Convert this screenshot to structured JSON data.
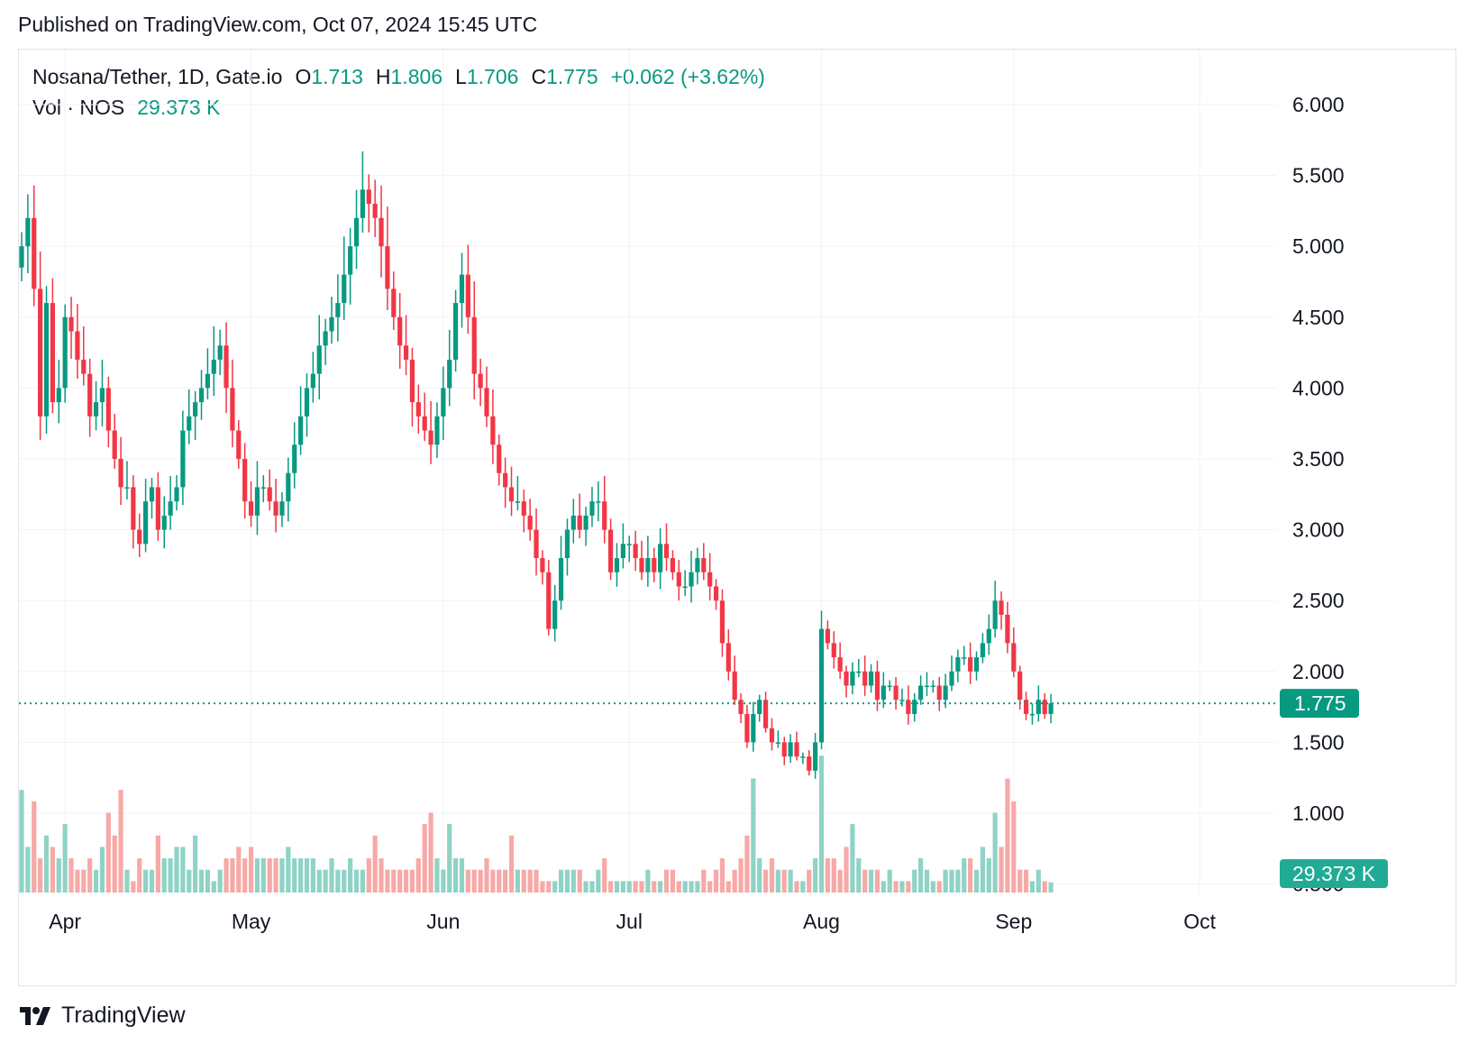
{
  "header": {
    "published": "Published on TradingView.com, Oct 07, 2024 15:45 UTC"
  },
  "legend": {
    "symbol": "Nosana/Tether, 1D, Gate.io",
    "o_label": "O",
    "o_value": "1.713",
    "h_label": "H",
    "h_value": "1.806",
    "l_label": "L",
    "l_value": "1.706",
    "c_label": "C",
    "c_value": "1.775",
    "change": "+0.062 (+3.62%)",
    "vol_label": "Vol · NOS",
    "vol_value": "29.373 K"
  },
  "price_badge": "1.775",
  "volume_badge": "29.373 K",
  "footer": {
    "brand": "TradingView"
  },
  "colors": {
    "up": "#089981",
    "down": "#f23645",
    "up_vol": "#8fd3c6",
    "down_vol": "#f7a9a7",
    "grid": "#f0f3fa",
    "text": "#131722"
  },
  "chart_data": {
    "type": "candlestick",
    "title": "Nosana/Tether, 1D, Gate.io",
    "xlabel": "",
    "ylabel": "",
    "ylim": [
      0.5,
      6.2
    ],
    "y_ticks": [
      "6.000",
      "5.500",
      "5.000",
      "4.500",
      "4.000",
      "3.500",
      "3.000",
      "2.500",
      "2.000",
      "1.500",
      "1.000",
      "0.500"
    ],
    "x_ticks": [
      {
        "label": "Apr",
        "day": 0
      },
      {
        "label": "May",
        "day": 30
      },
      {
        "label": "Jun",
        "day": 61
      },
      {
        "label": "Jul",
        "day": 91
      },
      {
        "label": "Aug",
        "day": 122
      },
      {
        "label": "Sep",
        "day": 153
      },
      {
        "label": "Oct",
        "day": 183
      }
    ],
    "last_price": 1.775,
    "first_day": -7,
    "close": [
      5.0,
      5.2,
      4.7,
      3.8,
      4.6,
      3.9,
      4.0,
      4.5,
      4.4,
      4.2,
      4.1,
      3.8,
      3.9,
      4.0,
      3.7,
      3.5,
      3.3,
      3.3,
      3.0,
      2.9,
      3.2,
      3.3,
      3.0,
      3.1,
      3.2,
      3.3,
      3.7,
      3.8,
      3.9,
      4.0,
      4.1,
      4.2,
      4.3,
      4.0,
      3.7,
      3.5,
      3.2,
      3.1,
      3.3,
      3.3,
      3.2,
      3.1,
      3.2,
      3.4,
      3.6,
      3.8,
      4.0,
      4.1,
      4.3,
      4.4,
      4.5,
      4.6,
      4.8,
      5.0,
      5.2,
      5.4,
      5.3,
      5.2,
      5.0,
      4.7,
      4.5,
      4.3,
      4.2,
      3.9,
      3.8,
      3.7,
      3.6,
      3.8,
      4.0,
      4.2,
      4.6,
      4.8,
      4.5,
      4.1,
      4.0,
      3.8,
      3.6,
      3.4,
      3.3,
      3.2,
      3.2,
      3.1,
      3.0,
      2.8,
      2.7,
      2.3,
      2.5,
      2.8,
      3.0,
      3.1,
      3.0,
      3.1,
      3.2,
      3.2,
      3.0,
      2.7,
      2.8,
      2.9,
      2.9,
      2.8,
      2.7,
      2.8,
      2.7,
      2.9,
      2.8,
      2.7,
      2.6,
      2.6,
      2.7,
      2.8,
      2.7,
      2.6,
      2.5,
      2.2,
      2.0,
      1.8,
      1.7,
      1.5,
      1.7,
      1.8,
      1.6,
      1.5,
      1.5,
      1.4,
      1.5,
      1.4,
      1.4,
      1.3,
      1.5,
      2.3,
      2.2,
      2.1,
      2.0,
      1.9,
      2.0,
      2.0,
      1.9,
      2.0,
      1.8,
      1.9,
      1.9,
      1.8,
      1.8,
      1.7,
      1.8,
      1.9,
      1.9,
      1.9,
      1.8,
      1.9,
      2.0,
      2.1,
      2.1,
      2.0,
      2.1,
      2.2,
      2.3,
      2.5,
      2.4,
      2.2,
      2.0,
      1.8,
      1.7,
      1.7,
      1.8,
      1.7,
      1.775
    ],
    "volume_ratio": [
      0.9,
      0.4,
      0.8,
      0.3,
      0.5,
      0.4,
      0.3,
      0.6,
      0.3,
      0.2,
      0.2,
      0.3,
      0.2,
      0.4,
      0.7,
      0.5,
      0.9,
      0.2,
      0.1,
      0.3,
      0.2,
      0.2,
      0.5,
      0.3,
      0.3,
      0.4,
      0.4,
      0.2,
      0.5,
      0.2,
      0.2,
      0.1,
      0.2,
      0.3,
      0.3,
      0.4,
      0.3,
      0.4,
      0.3,
      0.3,
      0.3,
      0.3,
      0.3,
      0.4,
      0.3,
      0.3,
      0.3,
      0.3,
      0.2,
      0.2,
      0.3,
      0.2,
      0.2,
      0.3,
      0.2,
      0.2,
      0.3,
      0.5,
      0.3,
      0.2,
      0.2,
      0.2,
      0.2,
      0.2,
      0.3,
      0.6,
      0.7,
      0.3,
      0.2,
      0.6,
      0.3,
      0.3,
      0.2,
      0.2,
      0.2,
      0.3,
      0.2,
      0.2,
      0.2,
      0.5,
      0.2,
      0.2,
      0.2,
      0.2,
      0.1,
      0.1,
      0.1,
      0.2,
      0.2,
      0.2,
      0.2,
      0.1,
      0.1,
      0.2,
      0.3,
      0.1,
      0.1,
      0.1,
      0.1,
      0.1,
      0.1,
      0.2,
      0.1,
      0.1,
      0.2,
      0.2,
      0.1,
      0.1,
      0.1,
      0.1,
      0.2,
      0.1,
      0.2,
      0.3,
      0.1,
      0.2,
      0.3,
      0.5,
      1.0,
      0.3,
      0.2,
      0.3,
      0.2,
      0.2,
      0.2,
      0.1,
      0.1,
      0.2,
      0.3,
      1.2,
      0.3,
      0.3,
      0.2,
      0.4,
      0.6,
      0.3,
      0.2,
      0.2,
      0.2,
      0.1,
      0.2,
      0.1,
      0.1,
      0.1,
      0.2,
      0.3,
      0.2,
      0.1,
      0.1,
      0.2,
      0.2,
      0.2,
      0.3,
      0.3,
      0.2,
      0.4,
      0.3,
      0.7,
      0.4,
      1.0,
      0.8,
      0.2,
      0.2,
      0.1,
      0.2,
      0.1,
      0.09
    ]
  }
}
